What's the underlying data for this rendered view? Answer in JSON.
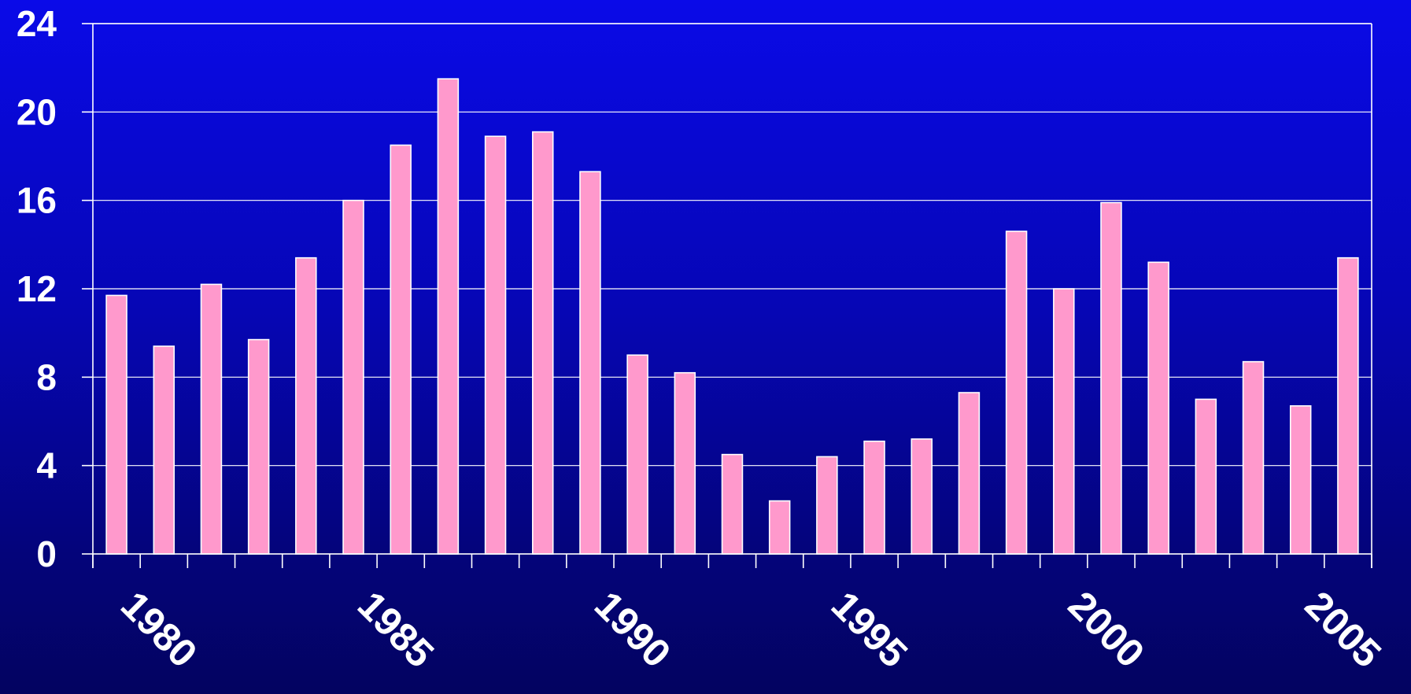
{
  "chart_data": {
    "type": "bar",
    "title": "",
    "xlabel": "",
    "ylabel": "",
    "categories": [
      1980,
      1981,
      1982,
      1983,
      1984,
      1985,
      1986,
      1987,
      1988,
      1989,
      1990,
      1991,
      1992,
      1993,
      1994,
      1995,
      1996,
      1997,
      1998,
      1999,
      2000,
      2001,
      2002,
      2003,
      2004,
      2005,
      2006
    ],
    "values": [
      11.7,
      9.4,
      12.2,
      9.7,
      13.4,
      16.0,
      18.5,
      21.5,
      18.9,
      19.1,
      17.3,
      9.0,
      8.2,
      4.5,
      2.4,
      4.4,
      5.1,
      5.2,
      7.3,
      14.6,
      12.0,
      15.9,
      13.2,
      7.0,
      8.7,
      6.7,
      13.4
    ],
    "ylim": [
      0,
      24
    ],
    "yticks": [
      "0",
      "4",
      "8",
      "12",
      "16",
      "20",
      "24"
    ],
    "xtick_labels": [
      "1980",
      "1985",
      "1990",
      "1995",
      "2000",
      "2005"
    ],
    "grid": true,
    "legend": "none",
    "colors": {
      "bar_fill": "#ff99cc",
      "bar_stroke": "#ffffff",
      "grid": "#ffffff",
      "text": "#ffffff"
    }
  }
}
